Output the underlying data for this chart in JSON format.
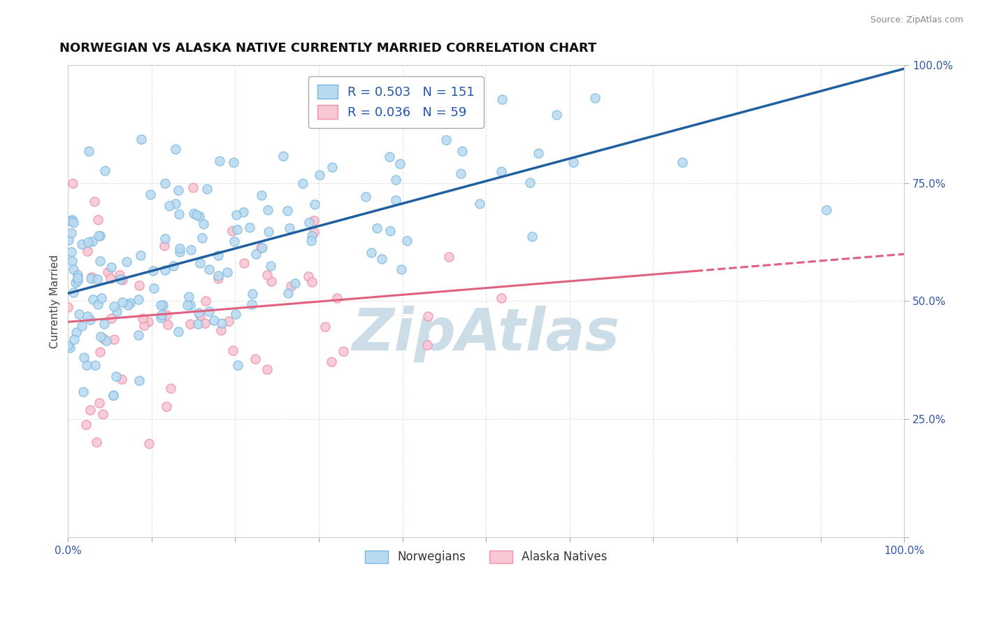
{
  "title": "NORWEGIAN VS ALASKA NATIVE CURRENTLY MARRIED CORRELATION CHART",
  "source_text": "Source: ZipAtlas.com",
  "ylabel": "Currently Married",
  "norwegian_R": 0.503,
  "norwegian_N": 151,
  "alaska_R": 0.036,
  "alaska_N": 59,
  "norwegian_color": "#7ab8e0",
  "norwegian_color_fill": "#b8d9f0",
  "alaska_color": "#f090a8",
  "alaska_color_fill": "#f8c8d4",
  "trend_norwegian_color": "#2060a0",
  "trend_alaska_color": "#e06080",
  "xlim": [
    0,
    1
  ],
  "ylim": [
    0,
    1
  ],
  "background_color": "#ffffff",
  "grid_color": "#cccccc",
  "watermark_text": "ZipAtlas",
  "watermark_color": "#ccdde8",
  "legend_R_N_color": "#2255aa",
  "title_fontsize": 13,
  "axis_label_fontsize": 11,
  "tick_label_fontsize": 11,
  "norwegian_seed": 12345,
  "alaska_seed": 67890
}
